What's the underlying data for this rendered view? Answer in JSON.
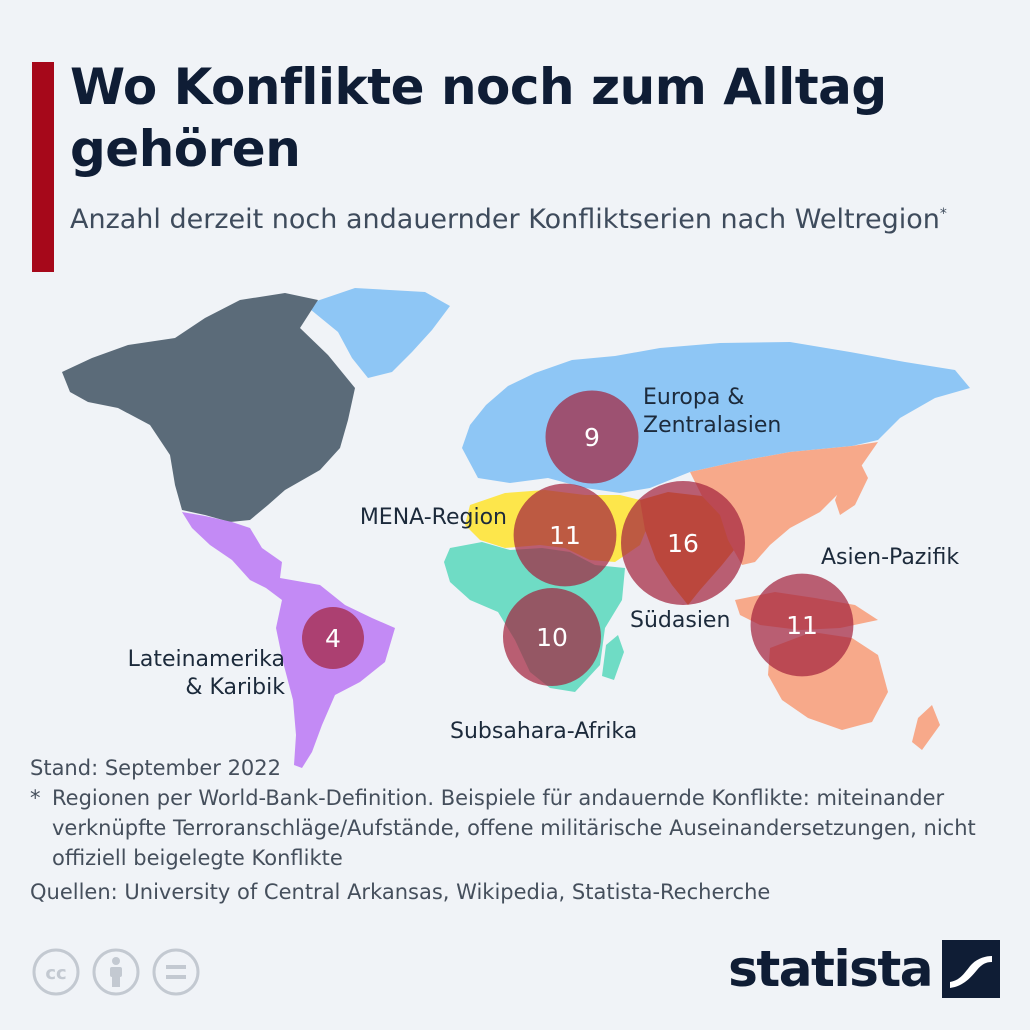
{
  "header": {
    "title": "Wo Konflikte noch zum Alltag gehören",
    "subtitle": "Anzahl derzeit noch andauernder Konfliktserien nach Weltregion",
    "subtitle_mark": "*"
  },
  "regions": [
    {
      "name": "Europa & Zentralasien",
      "label_lines": [
        "Europa &",
        "Zentralasien"
      ],
      "count": 9,
      "color": "#8ec6f5"
    },
    {
      "name": "MENA-Region",
      "label_lines": [
        "MENA-Region"
      ],
      "count": 11,
      "color": "#fde64b"
    },
    {
      "name": "Südasien",
      "label_lines": [
        "Südasien"
      ],
      "count": 16,
      "color": "#f7a23a"
    },
    {
      "name": "Asien-Pazifik",
      "label_lines": [
        "Asien-Pazifik"
      ],
      "count": 11,
      "color": "#f7a98a"
    },
    {
      "name": "Subsahara-Afrika",
      "label_lines": [
        "Subsahara-Afrika"
      ],
      "count": 10,
      "color": "#6fdcc5"
    },
    {
      "name": "Lateinamerika & Karibik",
      "label_lines": [
        "Lateinamerika",
        "& Karibik"
      ],
      "count": 4,
      "color": "#c38af5"
    }
  ],
  "map_colors": {
    "north_america": "#5b6b79",
    "bubble": "#a3243e",
    "background": "#f0f3f7"
  },
  "notes": {
    "stand": "Stand: September 2022",
    "footnote_mark": "*",
    "footnote": "Regionen per World-Bank-Definition. Beispiele für andauernde Konflikte: miteinander verknüpfte Terroranschläge/Aufstände, offene militärische Auseinandersetzungen, nicht offiziell beigelegte Konflikte",
    "sources": "Quellen: University of Central Arkansas, Wikipedia, Statista-Recherche"
  },
  "footer": {
    "brand": "statista",
    "license_icons": [
      "cc-icon",
      "attribution-icon",
      "no-derivatives-icon"
    ]
  }
}
